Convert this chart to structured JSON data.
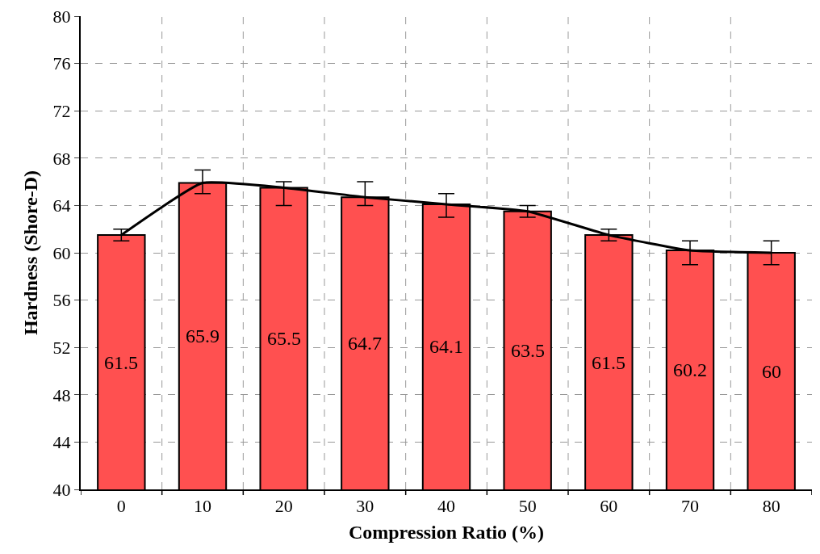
{
  "chart_data": {
    "type": "bar",
    "xlabel": "Compression Ratio (%)",
    "ylabel": "Hardness (Shore-D)",
    "categories": [
      "0",
      "10",
      "20",
      "30",
      "40",
      "50",
      "60",
      "70",
      "80"
    ],
    "series": [
      {
        "color": "#ff5050",
        "values": [
          61.5,
          65.9,
          65.5,
          64.7,
          64.1,
          63.5,
          61.5,
          60.2,
          60
        ],
        "value_labels": [
          "61.5",
          "65.9",
          "65.5",
          "64.7",
          "64.1",
          "63.5",
          "61.5",
          "60.2",
          "60"
        ],
        "errors": [
          [
            61,
            62
          ],
          [
            65,
            67
          ],
          [
            64,
            66
          ],
          [
            64,
            66
          ],
          [
            63,
            65
          ],
          [
            63,
            64
          ],
          [
            61,
            62
          ],
          [
            59,
            61
          ],
          [
            59,
            61
          ]
        ]
      },
      {
        "type": "line",
        "color": "#000000",
        "values": [
          61.5,
          65.9,
          65.5,
          64.7,
          64.1,
          63.5,
          61.5,
          60.2,
          60
        ]
      }
    ],
    "ylim": [
      40,
      80
    ],
    "yticks": [
      40,
      44,
      48,
      52,
      56,
      60,
      64,
      68,
      72,
      76,
      80
    ],
    "grid": true,
    "marker": "none",
    "line_style": "solid"
  }
}
